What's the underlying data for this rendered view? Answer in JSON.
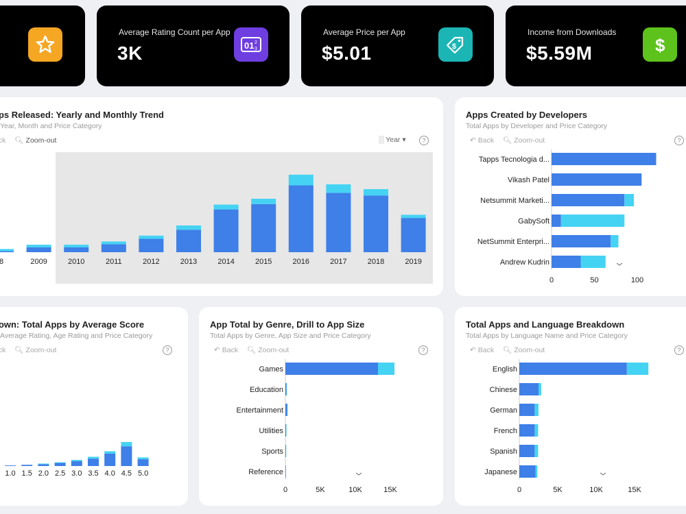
{
  "kpis": [
    {
      "title": "",
      "value": "",
      "icon": "star-icon",
      "color": "#f5a623"
    },
    {
      "title": "Average Rating Count per App",
      "value": "3K",
      "icon": "counter-icon",
      "color": "#6f3ee0"
    },
    {
      "title": "Average Price per App",
      "value": "$5.01",
      "icon": "price-tag-icon",
      "color": "#1bb5b5"
    },
    {
      "title": "Income from Downloads",
      "value": "$5.59M",
      "icon": "dollar-icon",
      "color": "#5ec21c"
    }
  ],
  "colors": {
    "primary": "#3e7fe8",
    "secondary": "#45d3f3"
  },
  "yearly": {
    "title": "pps Released: Yearly and Monthly Trend",
    "subtitle": "Year, Month and Price Category",
    "back": "ack",
    "zoom": "Zoom-out",
    "selector": "Year",
    "help": "?",
    "chart_data": {
      "type": "bar",
      "categories": [
        "8",
        "2009",
        "2010",
        "2011",
        "2012",
        "2013",
        "2014",
        "2015",
        "2016",
        "2017",
        "2018",
        "2019"
      ],
      "series": [
        {
          "values": [
            2,
            9,
            9,
            15,
            25,
            42,
            80,
            90,
            125,
            111,
            106,
            64
          ]
        },
        {
          "values": [
            4,
            5,
            5,
            5,
            6,
            8,
            9,
            10,
            20,
            16,
            12,
            6
          ]
        }
      ]
    }
  },
  "developers": {
    "title": "Apps Created by Developers",
    "subtitle": "Total Apps by Developer and Price Category",
    "back": "Back",
    "zoom": "Zoom-out",
    "help": "?",
    "chart_data": {
      "type": "bar",
      "categories": [
        "Tapps Tecnologia d...",
        "Vikash Patel",
        "Netsummit Marketi...",
        "GabySoft",
        "NetSummit Enterpri...",
        "Andrew Kudrin"
      ],
      "series": [
        {
          "values": [
            122,
            105,
            85,
            11,
            69,
            34
          ]
        },
        {
          "values": [
            0,
            0,
            11,
            74,
            9,
            29
          ]
        }
      ],
      "ticks": [
        "0",
        "50",
        "100"
      ]
    }
  },
  "score": {
    "title": "down: Total Apps by Average Score",
    "subtitle": "Average Rating, Age Rating and Price Category",
    "back": "ack",
    "zoom": "Zoom-out",
    "help": "?",
    "chart_data": {
      "type": "bar",
      "categories": [
        "1.0",
        "1.5",
        "2.0",
        "2.5",
        "3.0",
        "3.5",
        "4.0",
        "4.5",
        "5.0"
      ],
      "series": [
        {
          "values": [
            1,
            2,
            3,
            5,
            8,
            12,
            20,
            32,
            11
          ]
        },
        {
          "values": [
            0,
            0,
            1,
            1,
            2,
            3,
            4,
            7,
            3
          ]
        }
      ]
    }
  },
  "genre": {
    "title": "App Total by Genre, Drill to App Size",
    "subtitle": "Total Apps by Genre, App Size and Price Category",
    "back": "Back",
    "zoom": "Zoom-out",
    "help": "?",
    "chart_data": {
      "type": "bar",
      "categories": [
        "Games",
        "Education",
        "Entertainment",
        "Utilities",
        "Sports",
        "Reference"
      ],
      "series": [
        {
          "values": [
            13500,
            150,
            250,
            120,
            90,
            70
          ]
        },
        {
          "values": [
            2400,
            50,
            80,
            40,
            30,
            20
          ]
        }
      ],
      "ticks": [
        "0",
        "5K",
        "10K",
        "15K"
      ]
    }
  },
  "language": {
    "title": "Total Apps and Language Breakdown",
    "subtitle": "Total Apps by Language Name and Price Category",
    "back": "Back",
    "zoom": "Zoom-out",
    "help": "?",
    "chart_data": {
      "type": "bar",
      "categories": [
        "English",
        "Chinese",
        "German",
        "French",
        "Spanish",
        "Japanese"
      ],
      "series": [
        {
          "values": [
            14000,
            2500,
            2000,
            2000,
            2000,
            2100
          ]
        },
        {
          "values": [
            2800,
            350,
            500,
            450,
            450,
            250
          ]
        }
      ],
      "ticks": [
        "0",
        "5K",
        "10K",
        "15K"
      ]
    }
  }
}
